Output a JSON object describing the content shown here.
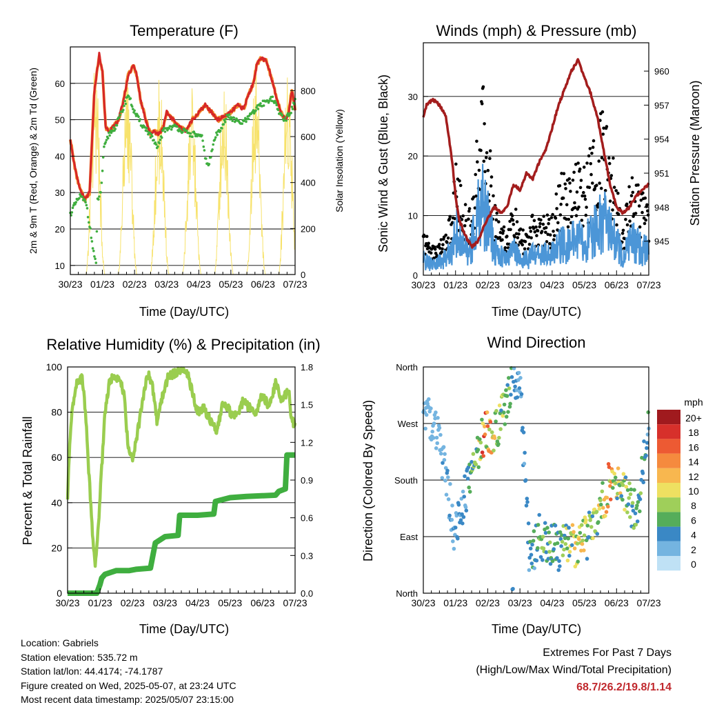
{
  "colors": {
    "t2m": "#d62728",
    "t9m": "#f28e2b",
    "td": "#3fae3f",
    "solar": "#f7e26b",
    "wind": "#4c96d7",
    "gust": "#000000",
    "pressure": "#a31d1d",
    "rh": "#9acd4f",
    "precip": "#3fae3f",
    "extremes": "#c0282d"
  },
  "x_ticks": [
    "30/23",
    "01/23",
    "02/23",
    "03/23",
    "04/23",
    "05/23",
    "06/23",
    "07/23"
  ],
  "panels": {
    "temp": {
      "title": "Temperature (F)",
      "xlabel": "Time (Day/UTC)",
      "ylabel_left": "2m & 9m T (Red, Orange) & 2m Td (Green)",
      "ylabel_right": "Solar Insolation (Yellow)",
      "left_ticks": [
        "10",
        "20",
        "30",
        "40",
        "50",
        "60"
      ],
      "right_ticks": [
        "0",
        "200",
        "400",
        "600",
        "800"
      ]
    },
    "wind": {
      "title": "Winds (mph) & Pressure (mb)",
      "xlabel": "Time (Day/UTC)",
      "ylabel_left": "Sonic Wind & Gust (Blue, Black)",
      "ylabel_right": "Station Pressure (Maroon)",
      "left_ticks": [
        "0",
        "10",
        "20",
        "30"
      ],
      "right_ticks": [
        "945",
        "948",
        "951",
        "954",
        "957",
        "960"
      ]
    },
    "rh": {
      "title": "Relative Humidity (%) & Precipitation (in)",
      "xlabel": "Time (Day/UTC)",
      "ylabel_left": "Percent & Total Rainfall",
      "left_ticks": [
        "0",
        "20",
        "40",
        "60",
        "80",
        "100"
      ],
      "right_ticks": [
        "0.0",
        "0.3",
        "0.6",
        "0.9",
        "1.2",
        "1.5",
        "1.8"
      ]
    },
    "dir": {
      "title": "Wind Direction",
      "xlabel": "Time (Day/UTC)",
      "ylabel_left": "Direction (Colored By Speed)",
      "left_ticks": [
        "North",
        "East",
        "South",
        "West",
        "North"
      ],
      "legend_unit": "mph",
      "legend_labels": [
        "20+",
        "18",
        "16",
        "14",
        "12",
        "10",
        "8",
        "6",
        "4",
        "2",
        "0"
      ],
      "legend_colors": [
        "#a01a1e",
        "#d7302b",
        "#ed5a33",
        "#f58a3e",
        "#f8b74f",
        "#eee061",
        "#9fcf5a",
        "#55ad5a",
        "#3a88c5",
        "#74b4e0",
        "#bfe1f5"
      ]
    }
  },
  "chart_data": [
    {
      "type": "line",
      "title": "Temperature (F)",
      "xlabel": "Time (Day/UTC)",
      "ylabel": "2m & 9m T (Red, Orange) & 2m Td (Green)",
      "y2label": "Solar Insolation (Yellow)",
      "x_days": [
        0,
        7
      ],
      "ylim": [
        7.5,
        70
      ],
      "y2lim": [
        0,
        990
      ],
      "series": [
        {
          "name": "2m T",
          "x": [
            0,
            0.08,
            0.18,
            0.3,
            0.45,
            0.6,
            0.75,
            0.9,
            1.0,
            1.1,
            1.2,
            1.35,
            1.5,
            1.65,
            1.8,
            1.95,
            2.05,
            2.2,
            2.35,
            2.5,
            2.6,
            2.75,
            2.9,
            3.0,
            3.2,
            3.4,
            3.6,
            3.8,
            4.0,
            4.2,
            4.4,
            4.6,
            4.8,
            5.0,
            5.2,
            5.4,
            5.55,
            5.7,
            5.8,
            5.95,
            6.1,
            6.25,
            6.4,
            6.55,
            6.7,
            6.8,
            6.9,
            7.0
          ],
          "values": [
            45,
            40,
            35,
            31,
            28,
            30,
            58,
            68,
            63,
            48,
            47,
            48,
            50,
            55,
            62,
            65,
            63,
            55,
            50,
            46,
            47,
            46,
            48,
            52,
            50,
            48,
            47,
            50,
            52,
            54,
            52,
            50,
            51,
            52,
            54,
            53,
            57,
            60,
            65,
            67,
            66,
            62,
            57,
            52,
            50,
            52,
            58,
            53
          ]
        },
        {
          "name": "2m Td",
          "x": [
            0,
            0.1,
            0.3,
            0.5,
            0.7,
            0.8,
            0.85,
            0.95,
            1.05,
            1.2,
            1.4,
            1.6,
            1.8,
            2.0,
            2.2,
            2.4,
            2.55,
            2.7,
            2.9,
            3.1,
            3.3,
            3.5,
            3.7,
            3.9,
            4.1,
            4.2,
            4.3,
            4.5,
            4.7,
            4.9,
            5.1,
            5.3,
            5.5,
            5.7,
            5.9,
            6.1,
            6.3,
            6.5,
            6.7,
            6.85,
            7.0
          ],
          "values": [
            24,
            26,
            29,
            27,
            15,
            10,
            28,
            30,
            42,
            46,
            48,
            52,
            57,
            52,
            49,
            47,
            45,
            42,
            47,
            48,
            48,
            47,
            46,
            46,
            45,
            40,
            37,
            45,
            48,
            51,
            50,
            49,
            50,
            52,
            54,
            55,
            56,
            52,
            50,
            52,
            55
          ]
        },
        {
          "name": "Solar Insolation",
          "peak_days": [
            0.78,
            1.78,
            2.78,
            3.78,
            4.78,
            5.78,
            6.78
          ],
          "peak_values": [
            960,
            930,
            860,
            820,
            880,
            940,
            950
          ]
        }
      ]
    },
    {
      "type": "line",
      "title": "Winds (mph) & Pressure (mb)",
      "xlabel": "Time (Day/UTC)",
      "ylabel": "Sonic Wind & Gust (Blue, Black)",
      "y2label": "Station Pressure (Maroon)",
      "x_days": [
        0,
        7
      ],
      "ylim": [
        0,
        39
      ],
      "y2lim": [
        942,
        962.5
      ],
      "series": [
        {
          "name": "Station Pressure",
          "x": [
            0,
            0.1,
            0.3,
            0.5,
            0.7,
            0.9,
            1.0,
            1.1,
            1.3,
            1.5,
            1.7,
            1.9,
            2.0,
            2.2,
            2.4,
            2.6,
            2.8,
            3.0,
            3.2,
            3.4,
            3.6,
            3.8,
            4.0,
            4.2,
            4.4,
            4.6,
            4.8,
            5.0,
            5.2,
            5.4,
            5.6,
            5.8,
            6.0,
            6.2,
            6.4,
            6.6,
            6.8,
            7.0
          ],
          "values": [
            956,
            957,
            957.5,
            957,
            956,
            952,
            949,
            947,
            945.5,
            944.5,
            945,
            946.5,
            947,
            948,
            947.5,
            948,
            950,
            949.5,
            951,
            950.5,
            952,
            953,
            955,
            957,
            958.5,
            960,
            961,
            959.5,
            958,
            956,
            953,
            950,
            948,
            947.5,
            948,
            949,
            949.5,
            950
          ]
        },
        {
          "name": "Sonic Wind",
          "x": [
            0,
            0.3,
            0.6,
            0.9,
            1.0,
            1.2,
            1.4,
            1.6,
            1.8,
            2.0,
            2.2,
            2.4,
            2.6,
            2.8,
            3.0,
            3.2,
            3.4,
            3.6,
            3.8,
            4.0,
            4.2,
            4.4,
            4.6,
            4.8,
            5.0,
            5.2,
            5.4,
            5.6,
            5.8,
            6.0,
            6.2,
            6.4,
            6.6,
            6.8,
            7.0
          ],
          "values": [
            3,
            2,
            3,
            5,
            9,
            6,
            4,
            9,
            14,
            12,
            5,
            4,
            3,
            6,
            3,
            3,
            4,
            4,
            4,
            4,
            6,
            6,
            7,
            7,
            6,
            8,
            9,
            11,
            8,
            7,
            3,
            7,
            6,
            5,
            5
          ]
        },
        {
          "name": "Gust",
          "x": [
            0,
            0.3,
            0.6,
            0.9,
            1.0,
            1.2,
            1.4,
            1.6,
            1.8,
            2.0,
            2.2,
            2.4,
            2.6,
            2.8,
            3.0,
            3.2,
            3.4,
            3.6,
            3.8,
            4.0,
            4.2,
            4.4,
            4.6,
            4.8,
            5.0,
            5.2,
            5.4,
            5.6,
            5.8,
            6.0,
            6.2,
            6.4,
            6.6,
            6.8,
            7.0
          ],
          "values": [
            6,
            4,
            5,
            9,
            16,
            11,
            8,
            14,
            26,
            21,
            10,
            8,
            6,
            10,
            6,
            6,
            8,
            8,
            8,
            8,
            13,
            14,
            15,
            15,
            14,
            17,
            20,
            22,
            17,
            13,
            6,
            14,
            12,
            11,
            10
          ]
        }
      ]
    },
    {
      "type": "line",
      "title": "Relative Humidity (%) & Precipitation (in)",
      "xlabel": "Time (Day/UTC)",
      "ylabel": "Percent & Total Rainfall",
      "x_days": [
        0,
        7
      ],
      "ylim": [
        0,
        100
      ],
      "y2lim": [
        0,
        1.8
      ],
      "series": [
        {
          "name": "Relative Humidity",
          "x": [
            0,
            0.05,
            0.12,
            0.25,
            0.45,
            0.55,
            0.75,
            0.85,
            0.95,
            1.05,
            1.15,
            1.3,
            1.5,
            1.65,
            1.75,
            1.85,
            2.0,
            2.2,
            2.4,
            2.5,
            2.6,
            2.75,
            2.9,
            3.1,
            3.3,
            3.5,
            3.7,
            3.85,
            4.0,
            4.2,
            4.4,
            4.6,
            4.8,
            5.0,
            5.2,
            5.4,
            5.6,
            5.8,
            6.0,
            6.2,
            6.4,
            6.6,
            6.8,
            6.9,
            7.0
          ],
          "values": [
            42,
            60,
            78,
            92,
            95,
            80,
            30,
            12,
            30,
            55,
            80,
            94,
            96,
            92,
            88,
            66,
            58,
            75,
            93,
            96,
            92,
            76,
            86,
            96,
            97,
            99,
            97,
            88,
            80,
            82,
            76,
            72,
            85,
            80,
            78,
            85,
            82,
            80,
            88,
            82,
            93,
            85,
            90,
            76,
            75
          ]
        },
        {
          "name": "Total Precipitation",
          "x": [
            0,
            0.9,
            1.0,
            1.05,
            1.15,
            1.5,
            1.9,
            2.1,
            2.55,
            2.7,
            3.0,
            3.4,
            3.45,
            4.0,
            4.5,
            4.55,
            5.0,
            5.5,
            6.4,
            6.5,
            6.7,
            6.75,
            7.0
          ],
          "values": [
            0,
            0,
            0.07,
            0.12,
            0.15,
            0.18,
            0.18,
            0.19,
            0.2,
            0.4,
            0.45,
            0.46,
            0.62,
            0.62,
            0.63,
            0.73,
            0.76,
            0.77,
            0.78,
            0.81,
            0.83,
            1.1,
            1.1
          ]
        }
      ]
    },
    {
      "type": "scatter",
      "title": "Wind Direction",
      "xlabel": "Time (Day/UTC)",
      "ylabel": "Direction (Colored By Speed)",
      "x_days": [
        0,
        7
      ],
      "y_categories": [
        "North",
        "East",
        "South",
        "West",
        "North"
      ],
      "ylim": [
        0,
        360
      ],
      "series": [
        {
          "name": "Wind Direction",
          "x": [
            0,
            0.5,
            1.0,
            1.3,
            1.6,
            1.9,
            2.3,
            2.8,
            3.0,
            3.3,
            3.6,
            3.9,
            4.2,
            4.5,
            4.8,
            5.1,
            5.4,
            5.6,
            5.8,
            6.0,
            6.3,
            6.6,
            6.8,
            7.0
          ],
          "values": [
            300,
            240,
            90,
            160,
            210,
            255,
            260,
            350,
            330,
            50,
            90,
            80,
            70,
            80,
            75,
            90,
            120,
            150,
            180,
            170,
            150,
            130,
            190,
            285
          ],
          "speeds": [
            2,
            2,
            3,
            4,
            6,
            14,
            8,
            5,
            3,
            4,
            6,
            6,
            5,
            7,
            10,
            7,
            8,
            10,
            12,
            9,
            8,
            6,
            5,
            4
          ]
        }
      ]
    }
  ],
  "info": {
    "location": "Location: Gabriels",
    "elevation": "Station elevation: 535.72 m",
    "latlon": "Station lat/lon: 44.4174; -74.1787",
    "created": "Figure created on Wed, 2025-05-07, at 23:24 UTC",
    "recent": "Most recent data timestamp: 2025/05/07 23:15:00"
  },
  "extremes": {
    "title": "Extremes For Past 7 Days",
    "subtitle": "(High/Low/Max Wind/Total Precipitation)",
    "values": "68.7/26.2/19.8/1.14"
  }
}
